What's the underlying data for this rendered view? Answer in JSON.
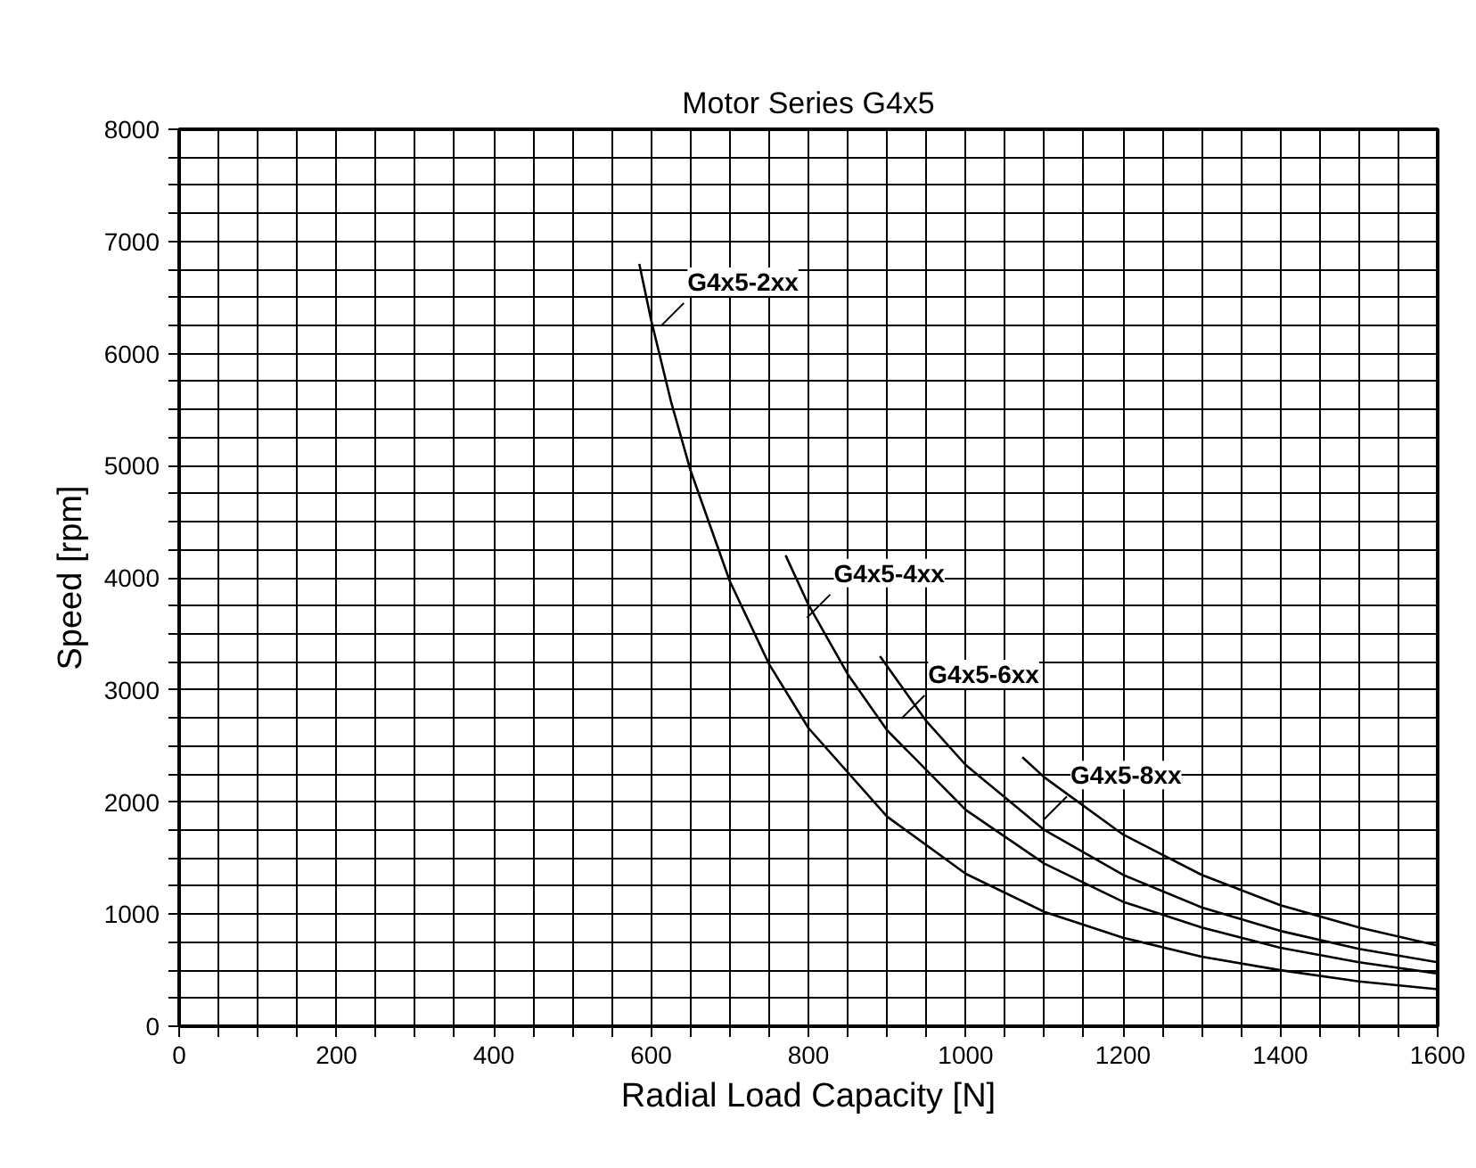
{
  "chart_data": {
    "type": "line",
    "title": "Motor Series G4x5",
    "xlabel": "Radial Load Capacity [N]",
    "ylabel": "Speed [rpm]",
    "xlim": [
      0,
      1600
    ],
    "ylim": [
      0,
      8000
    ],
    "xticks": [
      0,
      {
        "value": 50,
        "label": null
      },
      {
        "value": 100,
        "label": null
      },
      {
        "value": 150,
        "label": null
      },
      200,
      {
        "value": 250,
        "label": null
      },
      {
        "value": 300,
        "label": null
      },
      {
        "value": 350,
        "label": null
      },
      400,
      {
        "value": 450,
        "label": null
      },
      {
        "value": 500,
        "label": null
      },
      {
        "value": 550,
        "label": null
      },
      600,
      {
        "value": 650,
        "label": null
      },
      {
        "value": 700,
        "label": null
      },
      {
        "value": 750,
        "label": null
      },
      800,
      {
        "value": 850,
        "label": null
      },
      {
        "value": 900,
        "label": null
      },
      {
        "value": 950,
        "label": null
      },
      1000,
      {
        "value": 1050,
        "label": null
      },
      {
        "value": 1100,
        "label": null
      },
      {
        "value": 1150,
        "label": null
      },
      1200,
      {
        "value": 1250,
        "label": null
      },
      {
        "value": 1300,
        "label": null
      },
      {
        "value": 1350,
        "label": null
      },
      1400,
      {
        "value": 1450,
        "label": null
      },
      {
        "value": 1500,
        "label": null
      },
      {
        "value": 1550,
        "label": null
      },
      1600
    ],
    "yticks": [
      0,
      {
        "value": 250,
        "label": null
      },
      {
        "value": 500,
        "label": null
      },
      {
        "value": 750,
        "label": null
      },
      1000,
      {
        "value": 1250,
        "label": null
      },
      {
        "value": 1500,
        "label": null
      },
      {
        "value": 1750,
        "label": null
      },
      2000,
      {
        "value": 2250,
        "label": null
      },
      {
        "value": 2500,
        "label": null
      },
      {
        "value": 2750,
        "label": null
      },
      3000,
      {
        "value": 3250,
        "label": null
      },
      {
        "value": 3500,
        "label": null
      },
      {
        "value": 3750,
        "label": null
      },
      4000,
      {
        "value": 4250,
        "label": null
      },
      {
        "value": 4500,
        "label": null
      },
      {
        "value": 4750,
        "label": null
      },
      5000,
      {
        "value": 5250,
        "label": null
      },
      {
        "value": 5500,
        "label": null
      },
      {
        "value": 5750,
        "label": null
      },
      6000,
      {
        "value": 6250,
        "label": null
      },
      {
        "value": 6500,
        "label": null
      },
      {
        "value": 6750,
        "label": null
      },
      7000,
      {
        "value": 7250,
        "label": null
      },
      {
        "value": 7500,
        "label": null
      },
      {
        "value": 7750,
        "label": null
      },
      8000
    ],
    "grid": true,
    "marker": "none",
    "line_style": "solid",
    "series": [
      {
        "name": "G4x5-2xx",
        "color": "#000000",
        "x": [
          585,
          600,
          625,
          650,
          700,
          750,
          800,
          900,
          1000,
          1100,
          1200,
          1300,
          1400,
          1500,
          1600
        ],
        "values": [
          6800,
          6300,
          5580,
          4960,
          3970,
          3230,
          2660,
          1870,
          1360,
          1020,
          790,
          620,
          500,
          400,
          330
        ]
      },
      {
        "name": "G4x5-4xx",
        "color": "#000000",
        "x": [
          771,
          800,
          850,
          900,
          1000,
          1100,
          1200,
          1300,
          1400,
          1500,
          1600
        ],
        "values": [
          4200,
          3760,
          3140,
          2640,
          1930,
          1450,
          1110,
          880,
          700,
          570,
          470
        ]
      },
      {
        "name": "G4x5-6xx",
        "color": "#000000",
        "x": [
          891,
          950,
          1000,
          1100,
          1200,
          1300,
          1400,
          1500,
          1600
        ],
        "values": [
          3300,
          2720,
          2330,
          1750,
          1350,
          1060,
          850,
          690,
          570
        ]
      },
      {
        "name": "G4x5-8xx",
        "color": "#000000",
        "x": [
          1072,
          1100,
          1200,
          1300,
          1400,
          1500,
          1600
        ],
        "values": [
          2400,
          2220,
          1710,
          1350,
          1080,
          880,
          720
        ]
      }
    ]
  }
}
